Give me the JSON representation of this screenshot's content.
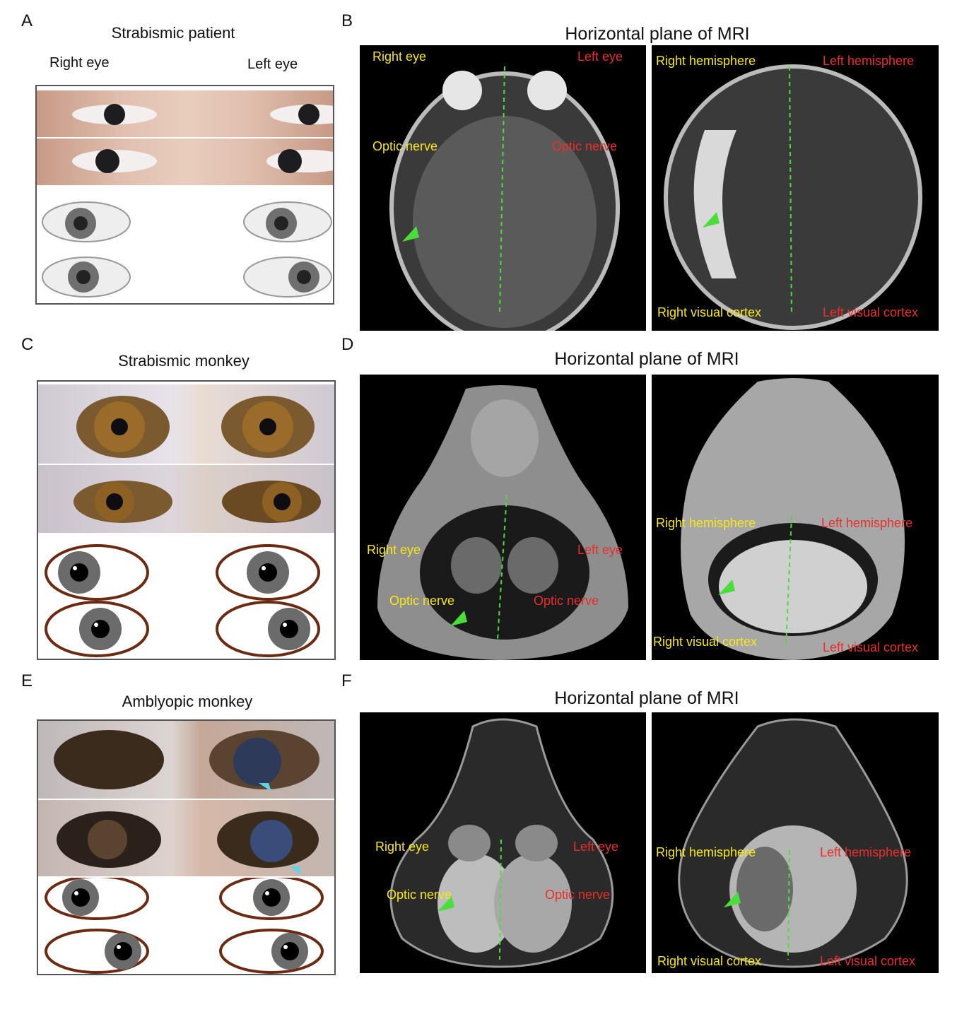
{
  "panels": {
    "A": {
      "letter": "A",
      "title": "Strabismic patient",
      "right_eye_label": "Right eye",
      "left_eye_label": "Left eye"
    },
    "B": {
      "letter": "B",
      "title": "Horizontal plane of MRI",
      "img1": {
        "right_eye": "Right eye",
        "left_eye": "Left eye",
        "optic_nerve_r": "Optic nerve",
        "optic_nerve_l": "Optic nerve"
      },
      "img2": {
        "right_hemisphere": "Right hemisphere",
        "left_hemisphere": "Left hemisphere",
        "right_visual_cortex": "Right visual cortex",
        "left_visual_cortex": "Left visual cortex"
      }
    },
    "C": {
      "letter": "C",
      "title": "Strabismic monkey"
    },
    "D": {
      "letter": "D",
      "title": "Horizontal plane of MRI",
      "img1": {
        "right_eye": "Right eye",
        "left_eye": "Left eye",
        "optic_nerve_r": "Optic nerve",
        "optic_nerve_l": "Optic nerve"
      },
      "img2": {
        "right_hemisphere": "Right hemisphere",
        "left_hemisphere": "Left hemisphere",
        "right_visual_cortex": "Right visual cortex",
        "left_visual_cortex": "Left visual cortex"
      }
    },
    "E": {
      "letter": "E",
      "title": "Amblyopic monkey"
    },
    "F": {
      "letter": "F",
      "title": "Horizontal plane of MRI",
      "img1": {
        "right_eye": "Right eye",
        "left_eye": "Left eye",
        "optic_nerve_r": "Optic nerve",
        "optic_nerve_l": "Optic nerve"
      },
      "img2": {
        "right_hemisphere": "Right hemisphere",
        "left_hemisphere": "Left hemisphere",
        "right_visual_cortex": "Right visual cortex",
        "left_visual_cortex": "Left visual cortex"
      }
    }
  },
  "colors": {
    "label_yellow": "#f7e71c",
    "label_red": "#e8302a",
    "arrow_green": "#4ade3a",
    "arrow_cyan": "#5cd6e6",
    "midline_green": "#4ade3a",
    "eye_outline_brown": "#6b2a12"
  }
}
